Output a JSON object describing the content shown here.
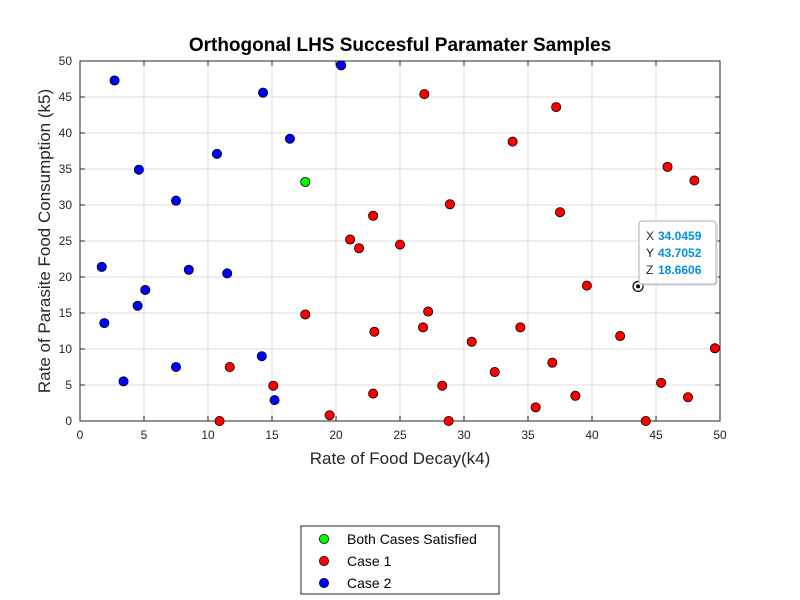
{
  "chart_data": {
    "type": "scatter",
    "title": "Orthogonal LHS Succesful Paramater Samples",
    "xlabel": "Rate of Food Decay(k4)",
    "ylabel": "Rate of Parasite Food Consumption (k5)",
    "xlim": [
      0,
      50
    ],
    "ylim": [
      0,
      50
    ],
    "xticks": [
      "0",
      "5",
      "10",
      "15",
      "20",
      "25",
      "30",
      "35",
      "40",
      "45",
      "50"
    ],
    "yticks": [
      "0",
      "5",
      "10",
      "15",
      "20",
      "25",
      "30",
      "35",
      "40",
      "45",
      "50"
    ],
    "grid": true,
    "legend_position": "bottom-center",
    "series": [
      {
        "name": "Both Cases Satisfied",
        "color": "#00ff00",
        "points": [
          [
            17.6,
            33.2
          ]
        ]
      },
      {
        "name": "Case 1",
        "color": "#ff0000",
        "points": [
          [
            26.9,
            45.4
          ],
          [
            37.2,
            43.6
          ],
          [
            33.8,
            38.8
          ],
          [
            45.9,
            35.3
          ],
          [
            48.0,
            33.4
          ],
          [
            28.9,
            30.1
          ],
          [
            37.5,
            29.0
          ],
          [
            22.9,
            28.5
          ],
          [
            21.1,
            25.2
          ],
          [
            21.8,
            24.0
          ],
          [
            25.0,
            24.5
          ],
          [
            39.6,
            18.8
          ],
          [
            17.6,
            14.8
          ],
          [
            27.2,
            15.2
          ],
          [
            26.8,
            13.0
          ],
          [
            34.4,
            13.0
          ],
          [
            23.0,
            12.4
          ],
          [
            30.6,
            11.0
          ],
          [
            42.2,
            11.8
          ],
          [
            49.6,
            10.1
          ],
          [
            36.9,
            8.1
          ],
          [
            11.7,
            7.5
          ],
          [
            32.4,
            6.8
          ],
          [
            15.1,
            4.9
          ],
          [
            28.3,
            4.9
          ],
          [
            45.4,
            5.3
          ],
          [
            22.9,
            3.8
          ],
          [
            38.7,
            3.5
          ],
          [
            47.5,
            3.3
          ],
          [
            35.6,
            1.9
          ],
          [
            19.5,
            0.8
          ],
          [
            10.9,
            0.0
          ],
          [
            28.8,
            0.0
          ],
          [
            44.2,
            0.0
          ],
          [
            43.6,
            18.7
          ]
        ]
      },
      {
        "name": "Case 2",
        "color": "#0000ff",
        "points": [
          [
            2.7,
            47.3
          ],
          [
            20.4,
            49.4
          ],
          [
            14.3,
            45.6
          ],
          [
            16.4,
            39.2
          ],
          [
            10.7,
            37.1
          ],
          [
            4.6,
            34.9
          ],
          [
            7.5,
            30.6
          ],
          [
            1.7,
            21.4
          ],
          [
            8.5,
            21.0
          ],
          [
            11.5,
            20.5
          ],
          [
            5.1,
            18.2
          ],
          [
            4.5,
            16.0
          ],
          [
            1.9,
            13.6
          ],
          [
            14.2,
            9.0
          ],
          [
            7.5,
            7.5
          ],
          [
            3.4,
            5.5
          ],
          [
            15.2,
            2.9
          ]
        ]
      }
    ],
    "datatip": {
      "x_label": "X",
      "x_value": "34.0459",
      "y_label": "Y",
      "y_value": "43.7052",
      "z_label": "Z",
      "z_value": "18.6606",
      "anchor_point": [
        43.6,
        18.7
      ],
      "value_color": "#0090e0"
    }
  }
}
